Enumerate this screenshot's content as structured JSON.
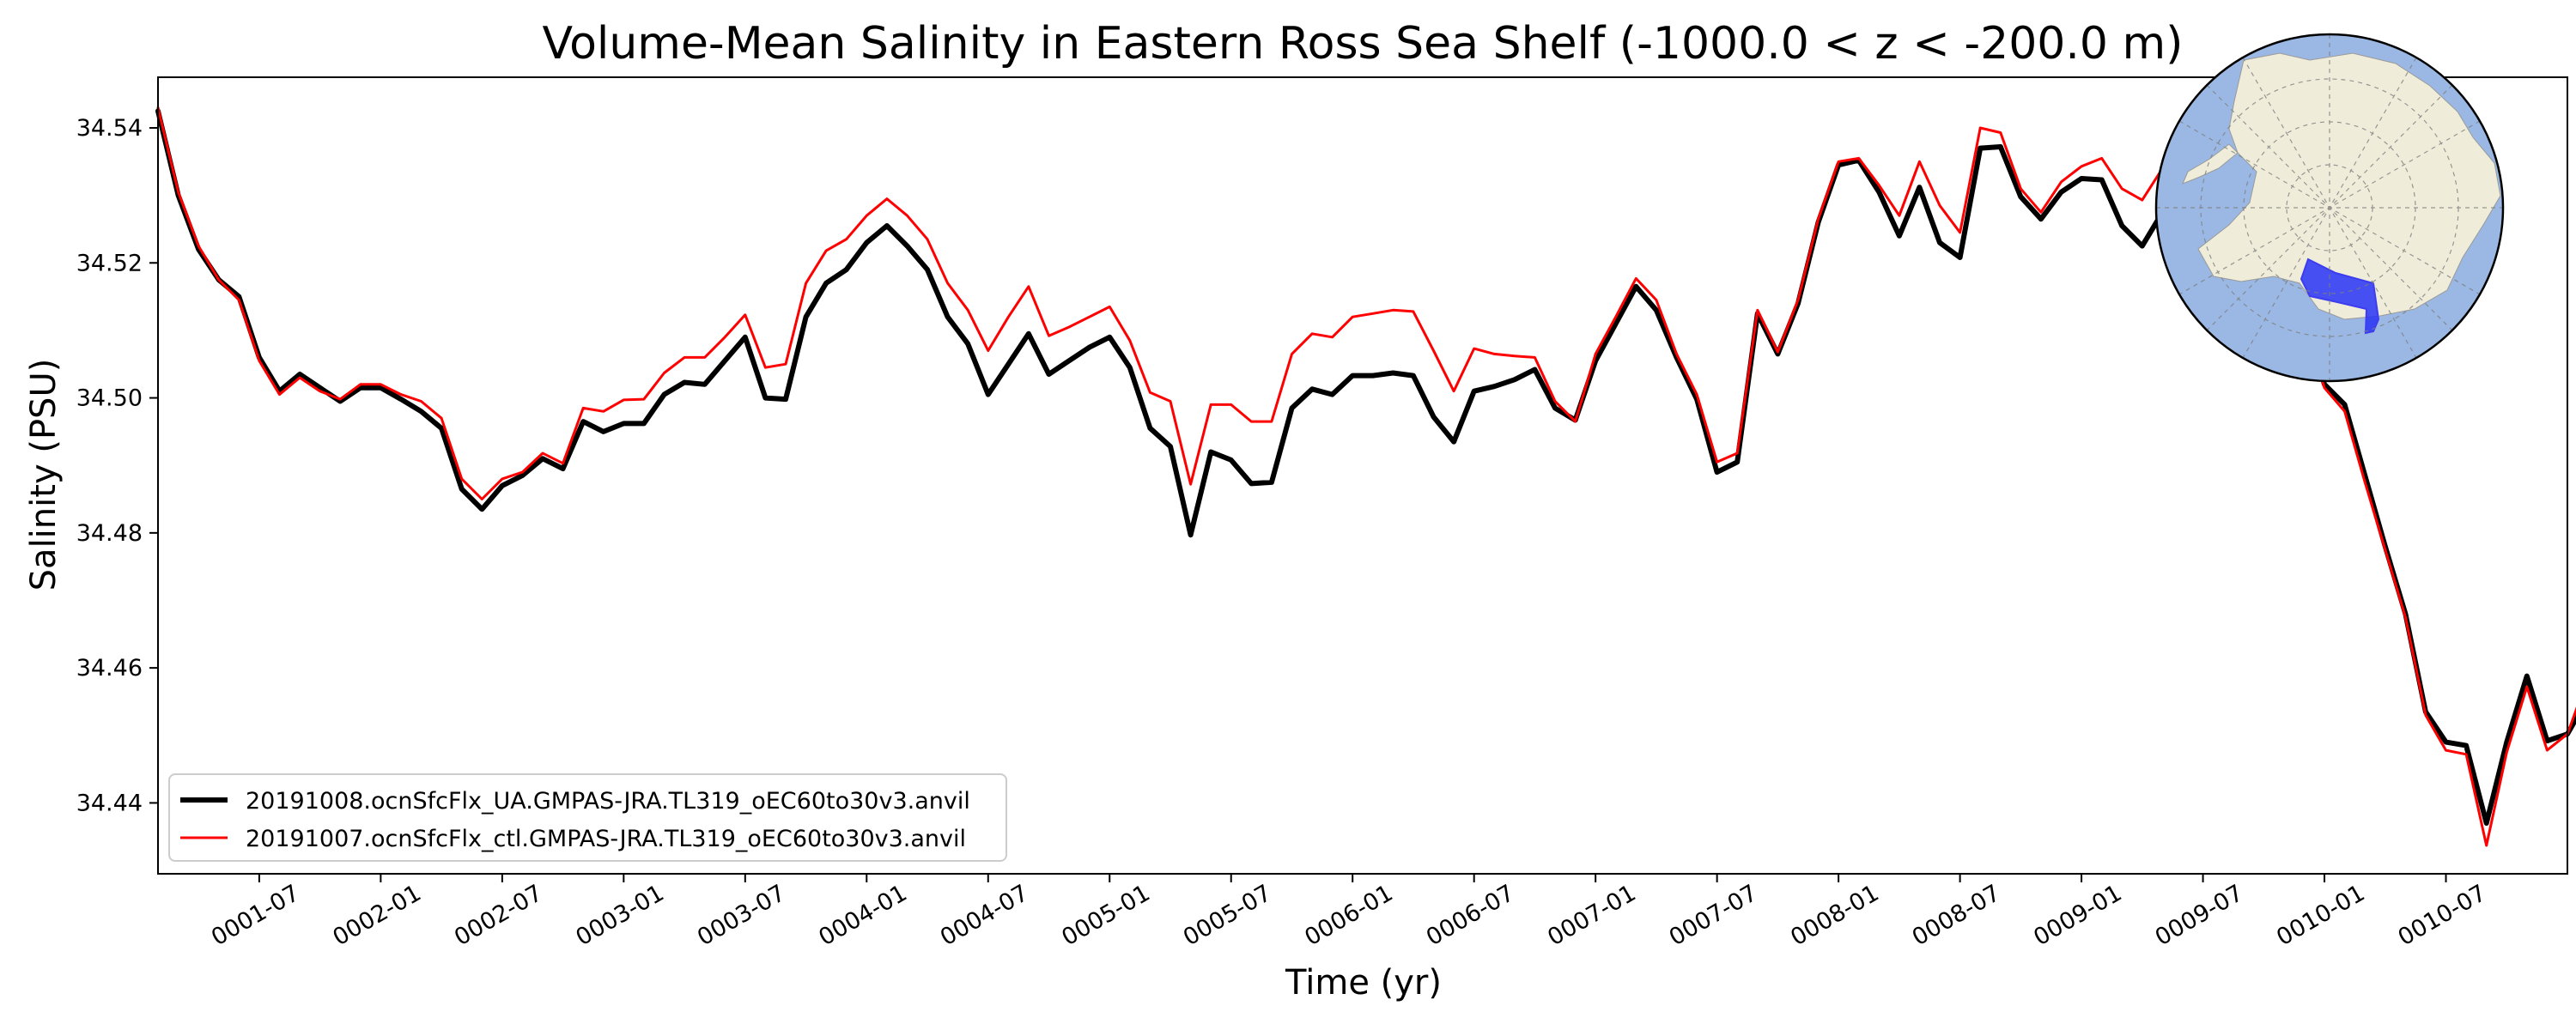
{
  "chart_data": {
    "type": "line",
    "title": "Volume-Mean Salinity in Eastern Ross Sea Shelf (-1000.0 < z < -200.0 m)",
    "xlabel": "Time (yr)",
    "ylabel": "Salinity (PSU)",
    "xlim": [
      1,
      120
    ],
    "ylim": [
      34.4295,
      34.5475
    ],
    "yticks": [
      34.44,
      34.46,
      34.48,
      34.5,
      34.52,
      34.54
    ],
    "ytick_labels": [
      "34.44",
      "34.46",
      "34.48",
      "34.50",
      "34.52",
      "34.54"
    ],
    "xticks": [
      6,
      12,
      18,
      24,
      30,
      36,
      42,
      48,
      54,
      60,
      66,
      72,
      78,
      84,
      90,
      96,
      102,
      108,
      114
    ],
    "xtick_labels": [
      "0001-07",
      "0002-01",
      "0002-07",
      "0003-01",
      "0003-07",
      "0004-01",
      "0004-07",
      "0005-01",
      "0005-07",
      "0006-01",
      "0006-07",
      "0007-01",
      "0007-07",
      "0008-01",
      "0008-07",
      "0009-01",
      "0009-07",
      "0010-01",
      "0010-07"
    ],
    "grid": false,
    "legend_position": "lower-left",
    "series": [
      {
        "name": "20191008.ocnSfcFlx_UA.GMPAS-JRA.TL319_oEC60to30v3.anvil",
        "color": "#000000",
        "values": [
          34.5425,
          34.53,
          34.522,
          34.5175,
          34.515,
          34.506,
          34.501,
          34.5035,
          34.5015,
          34.4995,
          34.5015,
          34.5015,
          34.4998,
          34.498,
          34.4955,
          34.4865,
          34.4835,
          34.487,
          34.4885,
          34.491,
          34.4895,
          34.4965,
          34.495,
          34.4962,
          34.4962,
          34.5005,
          34.5023,
          34.502,
          34.5055,
          34.509,
          34.5,
          34.4998,
          34.512,
          34.517,
          34.519,
          34.523,
          34.5255,
          34.5225,
          34.519,
          34.512,
          34.508,
          34.5005,
          34.505,
          34.5095,
          34.5035,
          34.5055,
          34.5075,
          34.509,
          34.5045,
          34.4955,
          34.4928,
          34.4797,
          34.492,
          34.4908,
          34.4873,
          34.4875,
          34.4985,
          34.5013,
          34.5005,
          34.5033,
          34.5033,
          34.5037,
          34.5033,
          34.4972,
          34.4935,
          34.501,
          34.5017,
          34.5027,
          34.5042,
          34.4985,
          34.4967,
          34.5055,
          34.511,
          34.5165,
          34.513,
          34.506,
          34.4998,
          34.489,
          34.4905,
          34.5125,
          34.5065,
          34.514,
          34.526,
          34.5345,
          34.5352,
          34.5305,
          34.524,
          34.5312,
          34.523,
          34.5208,
          34.537,
          34.5372,
          34.5298,
          34.5265,
          34.5305,
          34.5325,
          34.5323,
          34.5255,
          34.5225,
          34.5275,
          34.5275,
          34.5165,
          34.518,
          34.522,
          34.52,
          34.5165,
          34.512,
          34.502,
          34.499,
          34.4885,
          34.478,
          34.468,
          34.4535,
          34.449,
          34.4485,
          34.437,
          34.449,
          34.4588,
          34.4492,
          34.4502,
          34.4555
        ]
      },
      {
        "name": "20191007.ocnSfcFlx_ctl.GMPAS-JRA.TL319_oEC60to30v3.anvil",
        "color": "#ff0000",
        "values": [
          34.543,
          34.5305,
          34.5225,
          34.5175,
          34.5145,
          34.5055,
          34.5005,
          34.503,
          34.501,
          34.4998,
          34.502,
          34.502,
          34.5005,
          34.4995,
          34.497,
          34.488,
          34.485,
          34.488,
          34.489,
          34.4918,
          34.4903,
          34.4985,
          34.498,
          34.4997,
          34.4998,
          34.5037,
          34.506,
          34.506,
          34.509,
          34.5123,
          34.5045,
          34.505,
          34.517,
          34.5218,
          34.5235,
          34.527,
          34.5295,
          34.527,
          34.5235,
          34.517,
          34.513,
          34.507,
          34.512,
          34.5165,
          34.5092,
          34.5105,
          34.512,
          34.5135,
          34.5085,
          34.5008,
          34.4995,
          34.4872,
          34.499,
          34.499,
          34.4965,
          34.4965,
          34.5065,
          34.5095,
          34.509,
          34.512,
          34.5125,
          34.513,
          34.5128,
          34.507,
          34.501,
          34.5073,
          34.5065,
          34.5062,
          34.506,
          34.4995,
          34.4965,
          34.5065,
          34.512,
          34.5177,
          34.5145,
          34.5065,
          34.5005,
          34.4905,
          34.4918,
          34.513,
          34.5068,
          34.5145,
          34.5265,
          34.535,
          34.5355,
          34.5315,
          34.527,
          34.535,
          34.5285,
          34.5245,
          34.54,
          34.5393,
          34.531,
          34.5275,
          34.532,
          34.5343,
          34.5355,
          34.531,
          34.5293,
          34.534,
          34.533,
          34.5213,
          34.5222,
          34.5245,
          34.5225,
          34.5175,
          34.511,
          34.5015,
          34.498,
          34.4875,
          34.4775,
          34.4675,
          34.453,
          34.4478,
          34.4472,
          34.4337,
          34.4475,
          34.4572,
          34.4478,
          34.4502,
          34.4585
        ]
      }
    ],
    "inset_map": {
      "type": "south-polar-projection",
      "highlight_region": "Eastern Ross Sea Shelf",
      "colors": {
        "ocean": "#9ab8e3",
        "land": "#efedda",
        "region": "#2833f5",
        "region_edge": "#3d3df0"
      }
    }
  }
}
